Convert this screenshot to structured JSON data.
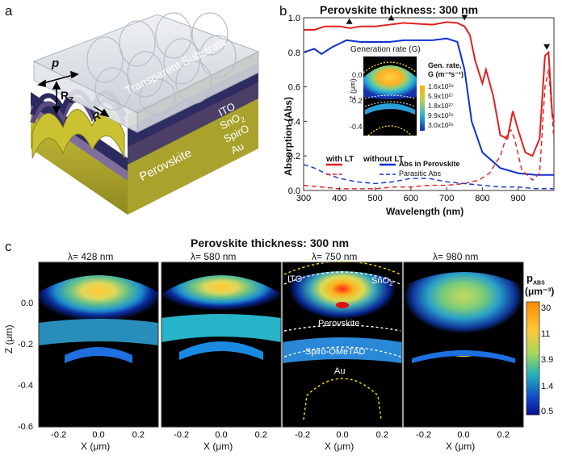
{
  "panel_a": {
    "letter": "a",
    "labels": {
      "p": "p",
      "rz": "R",
      "rz_sub": "Z",
      "r": "R",
      "substrate": "Transparent Substrate",
      "ito": "ITO",
      "sno2": "SnO",
      "sno2_sub": "2",
      "spiro": "SpirO",
      "au": "Au",
      "perovskite": "Perovskite"
    },
    "colors": {
      "substrate": "#d9dde2",
      "ito": "#8e8a3e",
      "sno2": "#4a3b5c",
      "perovskite": "#2c2b5e",
      "spiro": "#6b5a88",
      "au": "#b9b12e"
    }
  },
  "panel_b": {
    "letter": "b",
    "title": "Perovskite thickness: 300 nm",
    "inset_title": "Generation rate (G)",
    "inset_cbar_title": "Gen. rate,",
    "inset_cbar_unit": "G (m⁻³s⁻¹)",
    "inset_cbar_ticks": [
      "1.6x10²⁸",
      "5.9x10²⁷",
      "1.8x10²⁷",
      "9.9x10²⁶",
      "3.0x10²⁶"
    ],
    "inset_ylabel": "Z (μm)",
    "inset_yticks": [
      "0.0",
      "-0.2",
      "-0.4"
    ],
    "legend": {
      "with_lt": "with LT",
      "without_lt": "without LT",
      "abs_perovskite": "Abs in Perovskite",
      "parasitic": "Parasitic Abs"
    },
    "chart_data": {
      "type": "line",
      "xlabel": "Wavelength (nm)",
      "ylabel": "Absorption (Abs)",
      "xlim": [
        300,
        1000
      ],
      "ylim": [
        0,
        1.0
      ],
      "xticks": [
        "300",
        "400",
        "500",
        "600",
        "700",
        "800",
        "900"
      ],
      "yticks": [
        "0.0",
        "0.2",
        "0.4",
        "0.6",
        "0.8",
        "1.0"
      ],
      "series": [
        {
          "name": "with LT",
          "style": "solid",
          "color": "#e02020",
          "x": [
            300,
            330,
            360,
            400,
            430,
            460,
            500,
            540,
            580,
            620,
            660,
            700,
            730,
            750,
            765,
            780,
            800,
            810,
            830,
            850,
            870,
            885,
            900,
            920,
            940,
            960,
            975,
            985,
            995,
            1000
          ],
          "y": [
            0.93,
            0.93,
            0.95,
            0.95,
            0.94,
            0.95,
            0.95,
            0.96,
            0.97,
            0.965,
            0.96,
            0.975,
            0.97,
            0.95,
            0.9,
            0.75,
            0.62,
            0.7,
            0.55,
            0.32,
            0.3,
            0.46,
            0.35,
            0.22,
            0.2,
            0.3,
            0.78,
            0.8,
            0.45,
            0.4
          ]
        },
        {
          "name": "without LT",
          "style": "solid",
          "color": "#1030d0",
          "x": [
            300,
            330,
            350,
            380,
            420,
            460,
            500,
            540,
            580,
            620,
            660,
            700,
            730,
            750,
            770,
            800,
            850,
            900,
            950,
            1000
          ],
          "y": [
            0.8,
            0.82,
            0.79,
            0.83,
            0.87,
            0.86,
            0.86,
            0.86,
            0.87,
            0.87,
            0.87,
            0.88,
            0.86,
            0.7,
            0.4,
            0.22,
            0.13,
            0.1,
            0.09,
            0.09
          ]
        },
        {
          "name": "with LT parasitic",
          "style": "dashed",
          "color": "#e02020",
          "x": [
            300,
            350,
            400,
            450,
            500,
            550,
            600,
            650,
            700,
            750,
            790,
            820,
            850,
            870,
            880,
            890,
            910,
            940,
            960,
            975,
            985,
            1000
          ],
          "y": [
            0.03,
            0.02,
            0.01,
            0.01,
            0.01,
            0.02,
            0.02,
            0.03,
            0.03,
            0.04,
            0.06,
            0.1,
            0.2,
            0.33,
            0.35,
            0.3,
            0.12,
            0.06,
            0.1,
            0.6,
            0.7,
            0.3
          ]
        },
        {
          "name": "without LT parasitic",
          "style": "dashed",
          "color": "#1030d0",
          "x": [
            300,
            330,
            360,
            400,
            450,
            500,
            550,
            600,
            650,
            700,
            750,
            800,
            850,
            900,
            950,
            1000
          ],
          "y": [
            0.15,
            0.13,
            0.1,
            0.07,
            0.05,
            0.04,
            0.05,
            0.07,
            0.07,
            0.05,
            0.04,
            0.03,
            0.02,
            0.02,
            0.01,
            0.01
          ]
        }
      ],
      "markers": [
        {
          "x": 428,
          "y": 0.95,
          "shape": "triangle-up"
        },
        {
          "x": 545,
          "y": 0.97,
          "shape": "triangle-up"
        },
        {
          "x": 750,
          "y": 0.97,
          "shape": "triangle-down"
        },
        {
          "x": 980,
          "y": 0.8,
          "shape": "triangle-down"
        }
      ]
    }
  },
  "panel_c": {
    "letter": "c",
    "title": "Perovskite thickness: 300 nm",
    "ylabel": "Z (μm)",
    "xlabel": "X (μm)",
    "yticks": [
      "0.0",
      "-0.2",
      "-0.4",
      "-0.6"
    ],
    "xticks": [
      "-0.2",
      "0.0",
      "0.2"
    ],
    "maps": [
      {
        "title": "λ= 428 nm"
      },
      {
        "title": "λ= 580 nm"
      },
      {
        "title": "λ= 750 nm",
        "labels": {
          "ito": "ITO",
          "sno2": "SnO",
          "sno2_sub": "2",
          "perovskite": "Perovskite",
          "spiro": "Spiro-OMeTAD",
          "au": "Au"
        }
      },
      {
        "title": "λ= 980 nm"
      }
    ],
    "cbar_title": "p",
    "cbar_title_sub": "ABS",
    "cbar_unit": "(μm⁻³)",
    "cbar_ticks": [
      "30",
      "11",
      "3.9",
      "1.4",
      "0.5"
    ]
  }
}
